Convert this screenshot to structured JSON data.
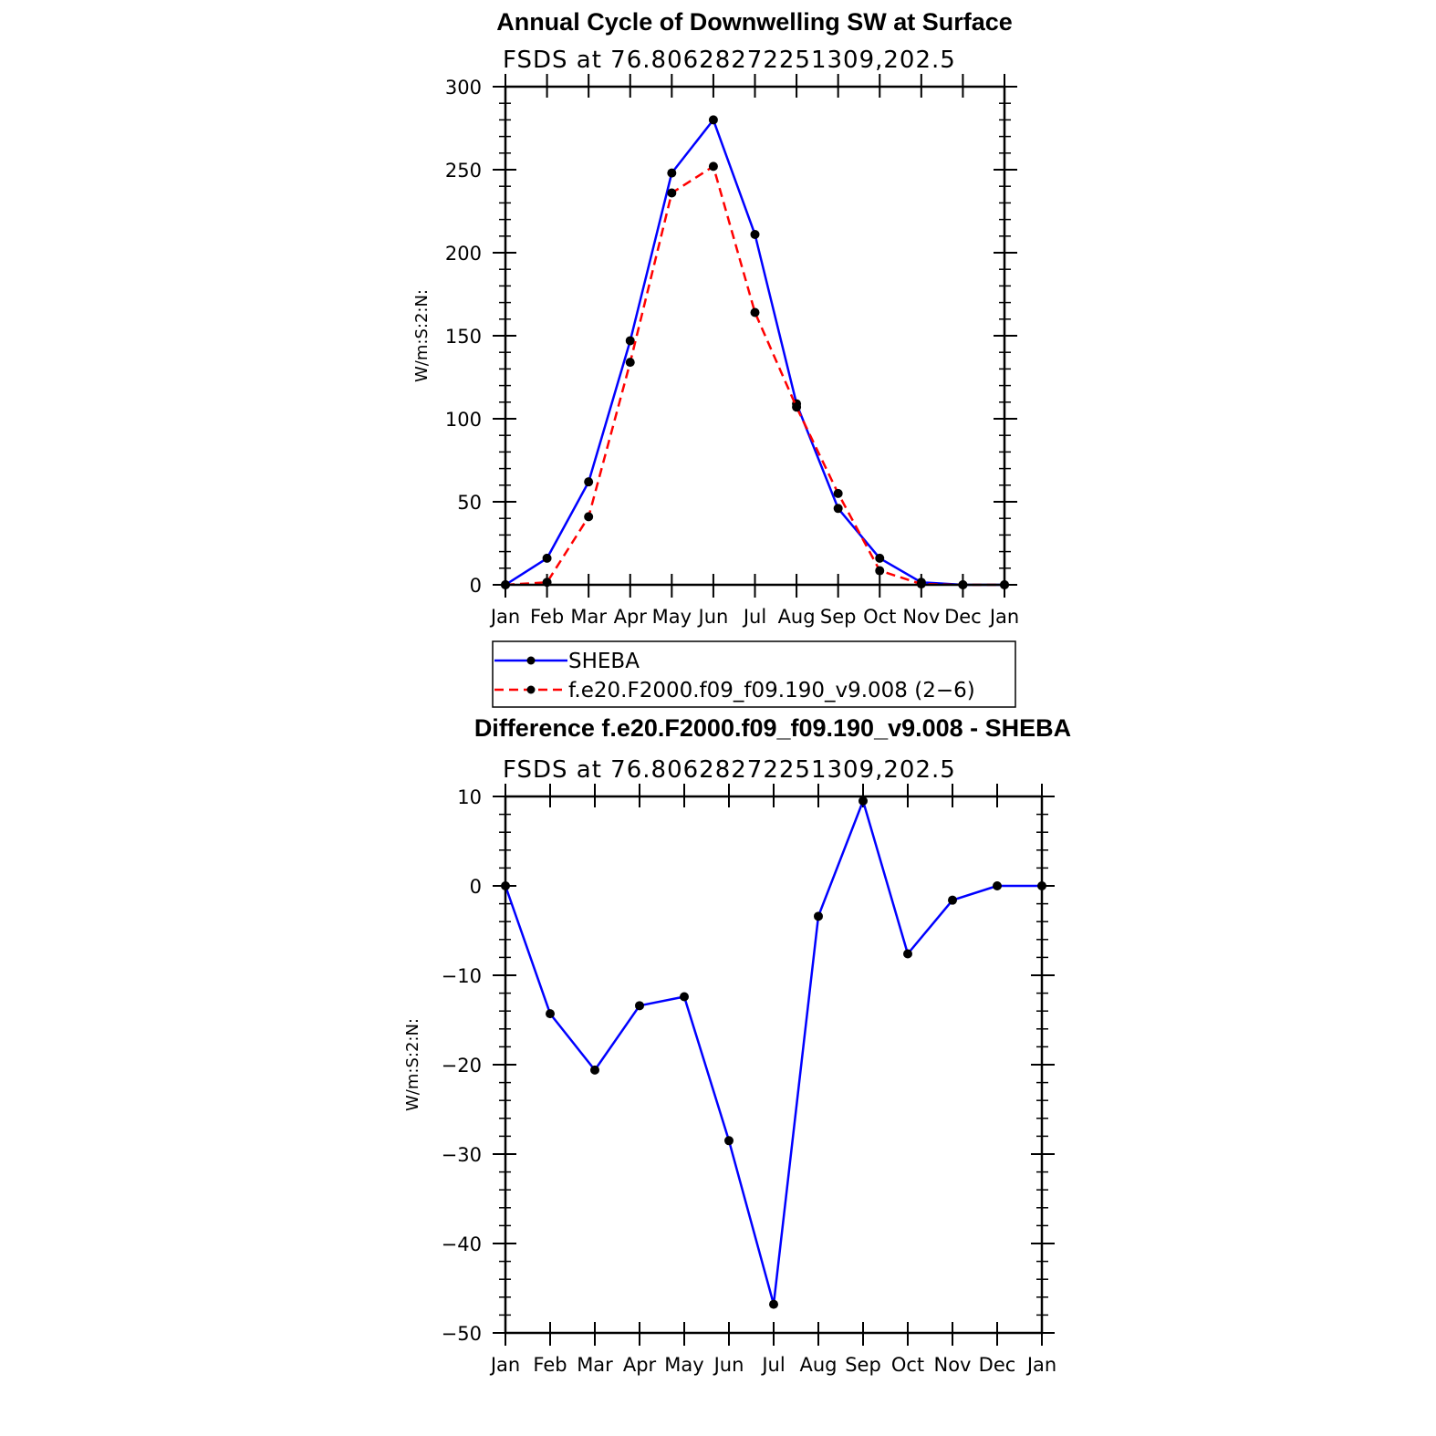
{
  "chart_data": [
    {
      "type": "line",
      "title": "Annual Cycle of Downwelling SW at Surface",
      "subtitle": "FSDS at 76.80628272251309,202.5",
      "ylabel": "W/m:S:2:N:",
      "xlabel": "",
      "categories": [
        "Jan",
        "Feb",
        "Mar",
        "Apr",
        "May",
        "Jun",
        "Jul",
        "Aug",
        "Sep",
        "Oct",
        "Nov",
        "Dec",
        "Jan"
      ],
      "ylim": [
        0,
        300
      ],
      "yticks": [
        0,
        50,
        100,
        150,
        200,
        250,
        300
      ],
      "grid": false,
      "legend_position": "bottom",
      "series": [
        {
          "name": "SHEBA",
          "color": "#0000ff",
          "dash": "solid",
          "values": [
            0,
            16,
            62,
            147,
            248,
            280,
            211,
            109,
            46,
            16,
            1.5,
            0,
            0
          ]
        },
        {
          "name": "f.e20.F2000.f09_f09.190_v9.008 (2−6)",
          "color": "#ff0000",
          "dash": "dashed",
          "values": [
            0,
            1.5,
            41,
            134,
            236,
            252,
            164,
            107,
            55,
            8.5,
            0.5,
            0,
            0
          ]
        }
      ]
    },
    {
      "type": "line",
      "title": "Difference f.e20.F2000.f09_f09.190_v9.008 - SHEBA",
      "subtitle": "FSDS at 76.80628272251309,202.5",
      "ylabel": "W/m:S:2:N:",
      "xlabel": "",
      "categories": [
        "Jan",
        "Feb",
        "Mar",
        "Apr",
        "May",
        "Jun",
        "Jul",
        "Aug",
        "Sep",
        "Oct",
        "Nov",
        "Dec",
        "Jan"
      ],
      "ylim": [
        -50,
        10
      ],
      "yticks": [
        -50,
        -40,
        -30,
        -20,
        -10,
        0,
        10
      ],
      "ytick_labels": [
        "−50",
        "−40",
        "−30",
        "−20",
        "−10",
        "0",
        "10"
      ],
      "grid": false,
      "series": [
        {
          "color": "#0000ff",
          "dash": "solid",
          "values": [
            0,
            -14.3,
            -20.6,
            -13.4,
            -12.4,
            -28.5,
            -46.8,
            -3.4,
            9.5,
            -7.6,
            -1.6,
            0,
            0
          ]
        }
      ]
    }
  ]
}
